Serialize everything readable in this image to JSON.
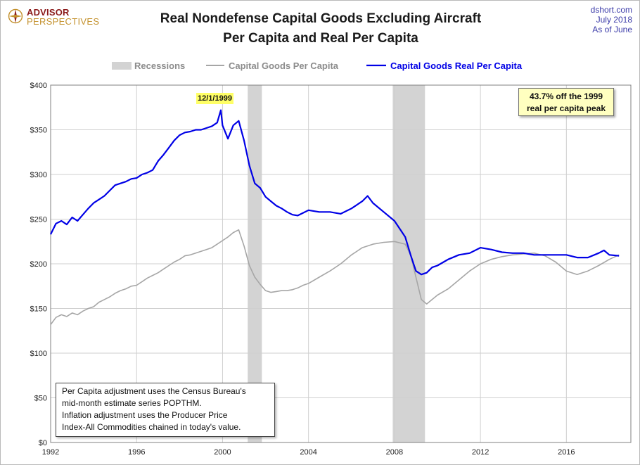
{
  "logo": {
    "line1": "ADVISOR",
    "line2": "PERSPECTIVES"
  },
  "title": {
    "line1": "Real Nondefense Capital Goods Excluding Aircraft",
    "line2": "Per Capita and Real Per Capita"
  },
  "source": {
    "site": "dshort.com",
    "date": "July 2018",
    "asof": "As of June"
  },
  "annotation": {
    "line1": "43.7%  off the 1999",
    "line2": "real per capita peak"
  },
  "peak_label": "12/1/1999",
  "note": {
    "lines": [
      "Per Capita adjustment uses the Census Bureau's",
      "mid-month estimate series POPTHM.",
      "Inflation adjustment uses the Producer Price",
      "Index-All Commodities chained in today's value."
    ]
  },
  "colors": {
    "recession": "#d3d3d3",
    "nominal": "#a6a6a6",
    "real": "#0000e6",
    "grid": "#cfcfcf",
    "logo_red": "#8b1a1a",
    "logo_gold": "#c4922e",
    "source_blue": "#3a3aa8"
  },
  "chart_data": {
    "type": "line",
    "title": "Real Nondefense Capital Goods Excluding Aircraft Per Capita and Real Per Capita",
    "x_unit": "year",
    "xlim": [
      1992,
      2019
    ],
    "ylim": [
      0,
      400
    ],
    "x_ticks": [
      1992,
      1996,
      2000,
      2004,
      2008,
      2012,
      2016
    ],
    "x_tick_labels": [
      "1992",
      "1996",
      "2000",
      "2004",
      "2008",
      "2012",
      "2016"
    ],
    "y_ticks": [
      0,
      50,
      100,
      150,
      200,
      250,
      300,
      350,
      400
    ],
    "y_tick_labels": [
      "$0",
      "$50",
      "$100",
      "$150",
      "$200",
      "$250",
      "$300",
      "$350",
      "$400"
    ],
    "grid": true,
    "legend": {
      "placement": "top",
      "entries": [
        "Recessions",
        "Capital Goods Per Capita",
        "Capital Goods Real Per Capita"
      ]
    },
    "recessions": [
      [
        2001.17,
        2001.83
      ],
      [
        2007.92,
        2009.42
      ]
    ],
    "series": [
      {
        "name": "Capital Goods Per Capita",
        "points": [
          [
            1992.0,
            132
          ],
          [
            1992.25,
            140
          ],
          [
            1992.5,
            143
          ],
          [
            1992.75,
            141
          ],
          [
            1993.0,
            145
          ],
          [
            1993.25,
            143
          ],
          [
            1993.5,
            147
          ],
          [
            1993.75,
            150
          ],
          [
            1994.0,
            152
          ],
          [
            1994.25,
            157
          ],
          [
            1994.5,
            160
          ],
          [
            1994.75,
            163
          ],
          [
            1995.0,
            167
          ],
          [
            1995.25,
            170
          ],
          [
            1995.5,
            172
          ],
          [
            1995.75,
            175
          ],
          [
            1996.0,
            176
          ],
          [
            1996.25,
            180
          ],
          [
            1996.5,
            184
          ],
          [
            1996.75,
            187
          ],
          [
            1997.0,
            190
          ],
          [
            1997.25,
            194
          ],
          [
            1997.5,
            198
          ],
          [
            1997.75,
            202
          ],
          [
            1998.0,
            205
          ],
          [
            1998.25,
            209
          ],
          [
            1998.5,
            210
          ],
          [
            1998.75,
            212
          ],
          [
            1999.0,
            214
          ],
          [
            1999.25,
            216
          ],
          [
            1999.5,
            218
          ],
          [
            1999.75,
            222
          ],
          [
            2000.0,
            226
          ],
          [
            2000.25,
            230
          ],
          [
            2000.5,
            235
          ],
          [
            2000.75,
            238
          ],
          [
            2001.0,
            220
          ],
          [
            2001.25,
            198
          ],
          [
            2001.5,
            185
          ],
          [
            2001.75,
            177
          ],
          [
            2002.0,
            170
          ],
          [
            2002.25,
            168
          ],
          [
            2002.5,
            169
          ],
          [
            2002.75,
            170
          ],
          [
            2003.0,
            170
          ],
          [
            2003.25,
            171
          ],
          [
            2003.5,
            173
          ],
          [
            2003.75,
            176
          ],
          [
            2004.0,
            178
          ],
          [
            2004.5,
            185
          ],
          [
            2005.0,
            192
          ],
          [
            2005.5,
            200
          ],
          [
            2006.0,
            210
          ],
          [
            2006.5,
            218
          ],
          [
            2007.0,
            222
          ],
          [
            2007.5,
            224
          ],
          [
            2008.0,
            225
          ],
          [
            2008.5,
            222
          ],
          [
            2008.75,
            210
          ],
          [
            2009.0,
            185
          ],
          [
            2009.25,
            160
          ],
          [
            2009.5,
            155
          ],
          [
            2009.75,
            160
          ],
          [
            2010.0,
            165
          ],
          [
            2010.5,
            172
          ],
          [
            2011.0,
            182
          ],
          [
            2011.5,
            192
          ],
          [
            2012.0,
            200
          ],
          [
            2012.5,
            205
          ],
          [
            2013.0,
            208
          ],
          [
            2013.5,
            210
          ],
          [
            2014.0,
            211
          ],
          [
            2014.5,
            212
          ],
          [
            2015.0,
            209
          ],
          [
            2015.5,
            202
          ],
          [
            2016.0,
            192
          ],
          [
            2016.5,
            188
          ],
          [
            2017.0,
            192
          ],
          [
            2017.5,
            198
          ],
          [
            2018.0,
            205
          ],
          [
            2018.45,
            210
          ]
        ]
      },
      {
        "name": "Capital Goods Real Per Capita",
        "points": [
          [
            1992.0,
            233
          ],
          [
            1992.25,
            245
          ],
          [
            1992.5,
            248
          ],
          [
            1992.75,
            244
          ],
          [
            1993.0,
            252
          ],
          [
            1993.25,
            248
          ],
          [
            1993.5,
            255
          ],
          [
            1993.75,
            262
          ],
          [
            1994.0,
            268
          ],
          [
            1994.25,
            272
          ],
          [
            1994.5,
            276
          ],
          [
            1994.75,
            282
          ],
          [
            1995.0,
            288
          ],
          [
            1995.25,
            290
          ],
          [
            1995.5,
            292
          ],
          [
            1995.75,
            295
          ],
          [
            1996.0,
            296
          ],
          [
            1996.25,
            300
          ],
          [
            1996.5,
            302
          ],
          [
            1996.75,
            305
          ],
          [
            1997.0,
            315
          ],
          [
            1997.25,
            322
          ],
          [
            1997.5,
            330
          ],
          [
            1997.75,
            338
          ],
          [
            1998.0,
            344
          ],
          [
            1998.25,
            347
          ],
          [
            1998.5,
            348
          ],
          [
            1998.75,
            350
          ],
          [
            1999.0,
            350
          ],
          [
            1999.25,
            352
          ],
          [
            1999.5,
            354
          ],
          [
            1999.75,
            358
          ],
          [
            1999.92,
            372
          ],
          [
            2000.0,
            355
          ],
          [
            2000.25,
            340
          ],
          [
            2000.5,
            355
          ],
          [
            2000.75,
            360
          ],
          [
            2001.0,
            338
          ],
          [
            2001.25,
            310
          ],
          [
            2001.5,
            290
          ],
          [
            2001.75,
            285
          ],
          [
            2002.0,
            275
          ],
          [
            2002.25,
            270
          ],
          [
            2002.5,
            265
          ],
          [
            2002.75,
            262
          ],
          [
            2003.0,
            258
          ],
          [
            2003.25,
            255
          ],
          [
            2003.5,
            254
          ],
          [
            2003.75,
            257
          ],
          [
            2004.0,
            260
          ],
          [
            2004.5,
            258
          ],
          [
            2005.0,
            258
          ],
          [
            2005.5,
            256
          ],
          [
            2006.0,
            262
          ],
          [
            2006.5,
            270
          ],
          [
            2006.75,
            276
          ],
          [
            2007.0,
            268
          ],
          [
            2007.5,
            258
          ],
          [
            2008.0,
            248
          ],
          [
            2008.5,
            230
          ],
          [
            2008.75,
            210
          ],
          [
            2009.0,
            192
          ],
          [
            2009.25,
            188
          ],
          [
            2009.5,
            190
          ],
          [
            2009.75,
            196
          ],
          [
            2010.0,
            198
          ],
          [
            2010.5,
            205
          ],
          [
            2011.0,
            210
          ],
          [
            2011.5,
            212
          ],
          [
            2012.0,
            218
          ],
          [
            2012.5,
            216
          ],
          [
            2013.0,
            213
          ],
          [
            2013.5,
            212
          ],
          [
            2014.0,
            212
          ],
          [
            2014.5,
            210
          ],
          [
            2015.0,
            210
          ],
          [
            2015.5,
            210
          ],
          [
            2016.0,
            210
          ],
          [
            2016.5,
            207
          ],
          [
            2017.0,
            207
          ],
          [
            2017.5,
            212
          ],
          [
            2017.75,
            215
          ],
          [
            2018.0,
            210
          ],
          [
            2018.45,
            209
          ]
        ]
      }
    ]
  }
}
